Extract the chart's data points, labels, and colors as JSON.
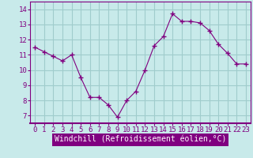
{
  "x": [
    0,
    1,
    2,
    3,
    4,
    5,
    6,
    7,
    8,
    9,
    10,
    11,
    12,
    13,
    14,
    15,
    16,
    17,
    18,
    19,
    20,
    21,
    22,
    23
  ],
  "y": [
    11.5,
    11.2,
    10.9,
    10.6,
    11.0,
    9.5,
    8.2,
    8.2,
    7.7,
    6.9,
    8.0,
    8.6,
    10.0,
    11.6,
    12.2,
    13.7,
    13.2,
    13.2,
    13.1,
    12.6,
    11.7,
    11.1,
    10.4,
    10.4
  ],
  "line_color": "#800080",
  "marker": "+",
  "marker_size": 4,
  "bg_color": "#c8eaea",
  "grid_color": "#a0cccc",
  "xlabel": "Windchill (Refroidissement éolien,°C)",
  "tick_fontsize": 6.5,
  "label_fontsize": 7,
  "ylim": [
    6.5,
    14.5
  ],
  "xlim": [
    -0.5,
    23.5
  ],
  "yticks": [
    7,
    8,
    9,
    10,
    11,
    12,
    13,
    14
  ],
  "xticks": [
    0,
    1,
    2,
    3,
    4,
    5,
    6,
    7,
    8,
    9,
    10,
    11,
    12,
    13,
    14,
    15,
    16,
    17,
    18,
    19,
    20,
    21,
    22,
    23
  ],
  "xlabel_bg": "#800080",
  "xlabel_fg": "#ffffff"
}
